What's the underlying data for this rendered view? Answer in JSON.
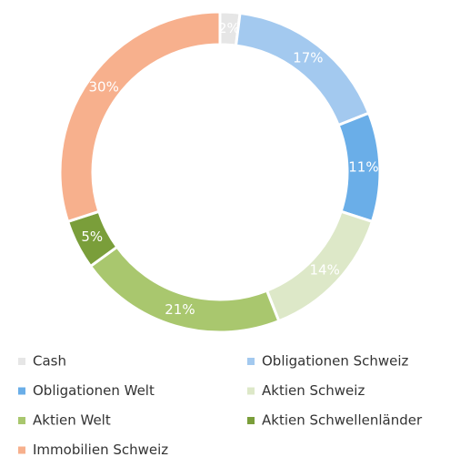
{
  "chart_data": {
    "type": "donut",
    "categories": [
      "Cash",
      "Obligationen Schweiz",
      "Obligationen Welt",
      "Aktien Schweiz",
      "Aktien Welt",
      "Aktien Schwellenländer",
      "Immobilien Schweiz"
    ],
    "values": [
      2,
      17,
      11,
      14,
      21,
      5,
      30
    ],
    "value_labels": [
      "2%",
      "17%",
      "11%",
      "14%",
      "21%",
      "5%",
      "30%"
    ],
    "colors": [
      "#e6e6e6",
      "#a3c9ef",
      "#6aaee8",
      "#dde8c8",
      "#a9c76e",
      "#7a9e3a",
      "#f7b08d"
    ],
    "legend": "bottom"
  }
}
